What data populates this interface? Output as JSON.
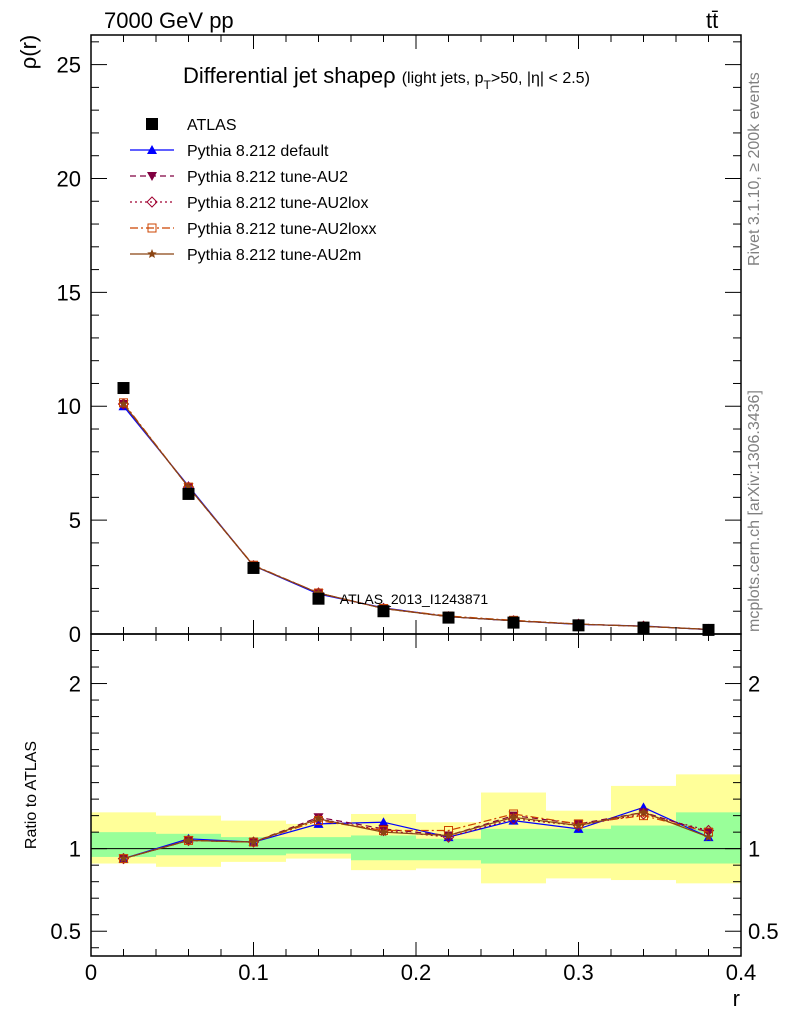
{
  "header": {
    "left": "7000 GeV pp",
    "right": "tt̄"
  },
  "side_labels": {
    "rivet": "Rivet 3.1.10, ≥ 200k events",
    "mcplots": "mcplots.cern.ch [arXiv:1306.3436]"
  },
  "watermark": "ATLAS_2013_I1243871",
  "chart_data": [
    {
      "type": "line",
      "title_main": "Differential jet shape",
      "title_rho": "ρ",
      "title_sub_pre": "(light jets, p",
      "title_sub_T": "T",
      "title_sub_post": ">50, |η| < 2.5)",
      "ylabel": "ρ(r)",
      "xlim": [
        0,
        0.4
      ],
      "ylim": [
        0,
        26.3
      ],
      "yticks": [
        "0",
        "5",
        "10",
        "15",
        "20",
        "25"
      ],
      "x": [
        0.02,
        0.06,
        0.1,
        0.14,
        0.18,
        0.22,
        0.26,
        0.3,
        0.34,
        0.38
      ],
      "atlas": {
        "name": "ATLAS",
        "values": [
          10.8,
          6.15,
          2.9,
          1.55,
          1.0,
          0.72,
          0.5,
          0.38,
          0.28,
          0.18
        ]
      },
      "series": [
        {
          "name": "Pythia 8.212 default",
          "color": "#0000ff",
          "marker": "triangle-up",
          "dash": "solid",
          "values": [
            10.0,
            6.5,
            3.0,
            1.75,
            1.15,
            0.76,
            0.58,
            0.42,
            0.35,
            0.19
          ]
        },
        {
          "name": "Pythia 8.212 tune-AU2",
          "color": "#800040",
          "marker": "triangle-down",
          "dash": "dashed",
          "values": [
            10.1,
            6.45,
            3.0,
            1.8,
            1.12,
            0.76,
            0.58,
            0.43,
            0.34,
            0.2
          ]
        },
        {
          "name": "Pythia 8.212 tune-AU2lox",
          "color": "#a00030",
          "marker": "diamond-open",
          "dash": "dotted",
          "values": [
            10.1,
            6.45,
            3.0,
            1.8,
            1.12,
            0.76,
            0.58,
            0.43,
            0.34,
            0.2
          ]
        },
        {
          "name": "Pythia 8.212 tune-AU2loxx",
          "color": "#cc4400",
          "marker": "square-open",
          "dash": "dashdot",
          "values": [
            10.15,
            6.45,
            3.02,
            1.8,
            1.12,
            0.79,
            0.6,
            0.44,
            0.34,
            0.2
          ]
        },
        {
          "name": "Pythia 8.212 tune-AU2m",
          "color": "#8b4513",
          "marker": "star",
          "dash": "solid",
          "values": [
            10.1,
            6.45,
            3.0,
            1.8,
            1.12,
            0.76,
            0.58,
            0.43,
            0.34,
            0.2
          ]
        }
      ]
    },
    {
      "type": "line",
      "ylabel": "Ratio to ATLAS",
      "xlabel": "r",
      "xlim": [
        0,
        0.4
      ],
      "ylim": [
        0.35,
        2.3
      ],
      "xticks": [
        "0",
        "0.1",
        "0.2",
        "0.3",
        "0.4"
      ],
      "yticks": [
        "0.5",
        "1",
        "2"
      ],
      "bands": {
        "x_edges": [
          0.0,
          0.04,
          0.08,
          0.12,
          0.16,
          0.2,
          0.24,
          0.28,
          0.32,
          0.36,
          0.4
        ],
        "inner_lo": [
          0.95,
          0.96,
          0.96,
          0.97,
          0.93,
          0.93,
          0.91,
          0.91,
          0.91,
          0.91
        ],
        "inner_hi": [
          1.1,
          1.09,
          1.07,
          1.07,
          1.08,
          1.06,
          1.12,
          1.12,
          1.14,
          1.22
        ],
        "outer_lo": [
          0.91,
          0.89,
          0.92,
          0.94,
          0.87,
          0.88,
          0.79,
          0.82,
          0.81,
          0.79
        ],
        "outer_hi": [
          1.22,
          1.2,
          1.17,
          1.15,
          1.21,
          1.16,
          1.34,
          1.23,
          1.38,
          1.45
        ]
      },
      "series": [
        {
          "name": "Pythia 8.212 default",
          "values": [
            0.94,
            1.06,
            1.04,
            1.15,
            1.16,
            1.07,
            1.17,
            1.12,
            1.25,
            1.07
          ]
        },
        {
          "name": "Pythia 8.212 tune-AU2",
          "values": [
            0.94,
            1.05,
            1.04,
            1.19,
            1.12,
            1.08,
            1.2,
            1.15,
            1.22,
            1.1
          ]
        },
        {
          "name": "Pythia 8.212 tune-AU2lox",
          "values": [
            0.94,
            1.05,
            1.04,
            1.18,
            1.11,
            1.07,
            1.18,
            1.14,
            1.21,
            1.11
          ]
        },
        {
          "name": "Pythia 8.212 tune-AU2loxx",
          "values": [
            0.94,
            1.05,
            1.04,
            1.17,
            1.11,
            1.11,
            1.21,
            1.15,
            1.2,
            1.1
          ]
        },
        {
          "name": "Pythia 8.212 tune-AU2m",
          "values": [
            0.94,
            1.05,
            1.04,
            1.18,
            1.1,
            1.08,
            1.19,
            1.14,
            1.22,
            1.07
          ]
        }
      ]
    }
  ]
}
